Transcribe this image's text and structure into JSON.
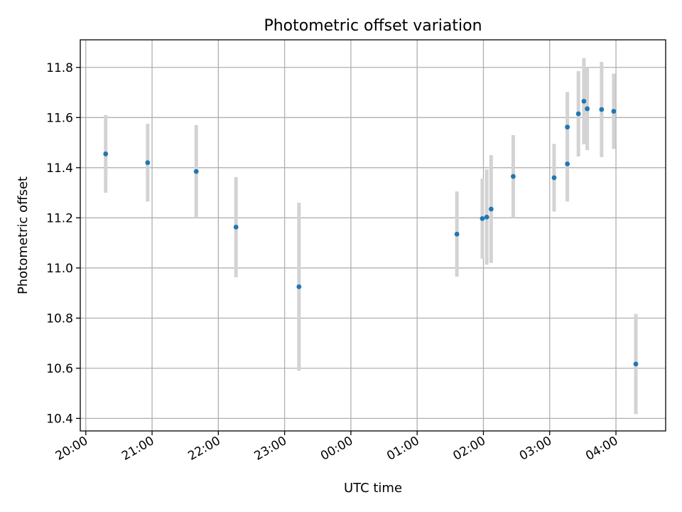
{
  "chart_data": {
    "type": "scatter",
    "title": "Photometric offset variation",
    "xlabel": "UTC time",
    "ylabel": "Photometric offset",
    "x_ticks": [
      "20:00",
      "21:00",
      "22:00",
      "23:00",
      "00:00",
      "01:00",
      "02:00",
      "03:00",
      "04:00"
    ],
    "y_ticks": [
      "10.4",
      "10.6",
      "10.8",
      "11.0",
      "11.2",
      "11.4",
      "11.6",
      "11.8"
    ],
    "xlim": [
      "19:55",
      "04:45"
    ],
    "ylim": [
      10.35,
      11.91
    ],
    "grid": true,
    "colors": {
      "points": "#1f77b4",
      "errorbars": "#d3d3d3",
      "grid": "#b0b0b0"
    },
    "points": [
      {
        "time": "20:18",
        "y": 11.455,
        "err": 0.155
      },
      {
        "time": "20:56",
        "y": 11.42,
        "err": 0.155
      },
      {
        "time": "21:40",
        "y": 11.385,
        "err": 0.185
      },
      {
        "time": "22:16",
        "y": 11.163,
        "err": 0.2
      },
      {
        "time": "23:13",
        "y": 10.925,
        "err": 0.335
      },
      {
        "time": "01:36",
        "y": 11.135,
        "err": 0.17
      },
      {
        "time": "01:59",
        "y": 11.197,
        "err": 0.16
      },
      {
        "time": "02:03",
        "y": 11.203,
        "err": 0.19
      },
      {
        "time": "02:07",
        "y": 11.235,
        "err": 0.215
      },
      {
        "time": "02:27",
        "y": 11.365,
        "err": 0.165
      },
      {
        "time": "03:04",
        "y": 11.36,
        "err": 0.135
      },
      {
        "time": "03:16",
        "y": 11.415,
        "err": 0.15
      },
      {
        "time": "03:16",
        "y": 11.562,
        "err": 0.14
      },
      {
        "time": "03:26",
        "y": 11.615,
        "err": 0.17
      },
      {
        "time": "03:31",
        "y": 11.665,
        "err": 0.172
      },
      {
        "time": "03:34",
        "y": 11.635,
        "err": 0.165
      },
      {
        "time": "03:47",
        "y": 11.632,
        "err": 0.19
      },
      {
        "time": "03:58",
        "y": 11.625,
        "err": 0.15
      },
      {
        "time": "04:18",
        "y": 10.617,
        "err": 0.2
      }
    ]
  }
}
